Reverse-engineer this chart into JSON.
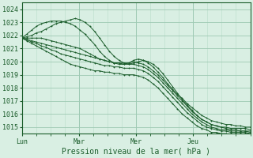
{
  "title": "Pression niveau de la mer( hPa )",
  "xlim": [
    0,
    96
  ],
  "ylim": [
    1014.5,
    1024.5
  ],
  "yticks": [
    1015,
    1016,
    1017,
    1018,
    1019,
    1020,
    1021,
    1022,
    1023,
    1024
  ],
  "xtick_positions": [
    0,
    24,
    48,
    72
  ],
  "xtick_labels": [
    "Lun",
    "Mar",
    "Mer",
    "Jeu"
  ],
  "bg_color": "#d9efe3",
  "grid_major_color": "#9ec9b3",
  "grid_minor_color": "#b8ddc9",
  "line_color": "#1a5c2a",
  "series": [
    [
      1021.8,
      1021.9,
      1022.0,
      1022.2,
      1022.3,
      1022.5,
      1022.7,
      1022.9,
      1023.0,
      1023.1,
      1023.2,
      1023.3,
      1023.2,
      1023.0,
      1022.7,
      1022.3,
      1021.8,
      1021.3,
      1020.8,
      1020.4,
      1020.1,
      1019.9,
      1019.8,
      1019.9,
      1020.0,
      1020.1,
      1020.0,
      1019.8,
      1019.5,
      1019.1,
      1018.6,
      1018.1,
      1017.6,
      1017.1,
      1016.7,
      1016.3,
      1015.9,
      1015.6,
      1015.4,
      1015.2,
      1015.1,
      1015.0,
      1014.9,
      1014.8,
      1014.8,
      1014.7,
      1014.7,
      1014.7
    ],
    [
      1021.8,
      1021.8,
      1021.8,
      1021.8,
      1021.8,
      1021.7,
      1021.6,
      1021.5,
      1021.4,
      1021.3,
      1021.2,
      1021.1,
      1021.0,
      1020.8,
      1020.6,
      1020.4,
      1020.2,
      1020.1,
      1020.0,
      1019.9,
      1019.9,
      1019.9,
      1019.9,
      1020.0,
      1019.9,
      1019.8,
      1019.6,
      1019.3,
      1019.0,
      1018.6,
      1018.2,
      1017.8,
      1017.4,
      1017.0,
      1016.6,
      1016.2,
      1015.9,
      1015.6,
      1015.4,
      1015.2,
      1015.1,
      1015.0,
      1015.0,
      1014.9,
      1014.9,
      1014.9,
      1014.9,
      1014.8
    ],
    [
      1021.8,
      1021.7,
      1021.6,
      1021.5,
      1021.4,
      1021.3,
      1021.2,
      1021.1,
      1021.0,
      1020.9,
      1020.8,
      1020.7,
      1020.6,
      1020.5,
      1020.4,
      1020.3,
      1020.2,
      1020.1,
      1020.0,
      1019.9,
      1019.9,
      1019.8,
      1019.8,
      1019.8,
      1019.7,
      1019.6,
      1019.4,
      1019.1,
      1018.8,
      1018.4,
      1018.0,
      1017.6,
      1017.2,
      1016.8,
      1016.4,
      1016.0,
      1015.7,
      1015.4,
      1015.2,
      1015.0,
      1014.9,
      1014.8,
      1014.8,
      1014.7,
      1014.7,
      1014.7,
      1014.7,
      1014.6
    ],
    [
      1021.8,
      1021.7,
      1021.5,
      1021.4,
      1021.2,
      1021.1,
      1020.9,
      1020.8,
      1020.6,
      1020.5,
      1020.4,
      1020.3,
      1020.2,
      1020.1,
      1020.0,
      1019.9,
      1019.8,
      1019.7,
      1019.7,
      1019.6,
      1019.6,
      1019.5,
      1019.5,
      1019.5,
      1019.4,
      1019.3,
      1019.1,
      1018.8,
      1018.5,
      1018.1,
      1017.7,
      1017.3,
      1016.9,
      1016.5,
      1016.1,
      1015.8,
      1015.5,
      1015.2,
      1015.0,
      1014.9,
      1014.8,
      1014.7,
      1014.7,
      1014.6,
      1014.6,
      1014.6,
      1014.6,
      1014.5
    ],
    [
      1021.8,
      1021.6,
      1021.4,
      1021.2,
      1021.0,
      1020.8,
      1020.6,
      1020.4,
      1020.2,
      1020.0,
      1019.8,
      1019.7,
      1019.6,
      1019.5,
      1019.4,
      1019.3,
      1019.3,
      1019.2,
      1019.2,
      1019.1,
      1019.1,
      1019.0,
      1019.0,
      1019.0,
      1018.9,
      1018.8,
      1018.6,
      1018.3,
      1018.0,
      1017.6,
      1017.2,
      1016.8,
      1016.4,
      1016.0,
      1015.7,
      1015.4,
      1015.1,
      1014.9,
      1014.8,
      1014.6,
      1014.6,
      1014.5,
      1014.5,
      1014.4,
      1014.4,
      1014.4,
      1014.4,
      1014.3
    ],
    [
      1021.8,
      1022.1,
      1022.4,
      1022.7,
      1022.9,
      1023.0,
      1023.1,
      1023.1,
      1023.1,
      1023.0,
      1022.9,
      1022.7,
      1022.4,
      1022.1,
      1021.7,
      1021.3,
      1020.8,
      1020.4,
      1020.1,
      1019.9,
      1019.8,
      1019.8,
      1019.9,
      1020.1,
      1020.2,
      1020.1,
      1019.9,
      1019.6,
      1019.2,
      1018.8,
      1018.3,
      1017.9,
      1017.5,
      1017.2,
      1016.8,
      1016.5,
      1016.2,
      1015.9,
      1015.7,
      1015.5,
      1015.4,
      1015.3,
      1015.2,
      1015.2,
      1015.1,
      1015.1,
      1015.0,
      1015.0
    ]
  ]
}
